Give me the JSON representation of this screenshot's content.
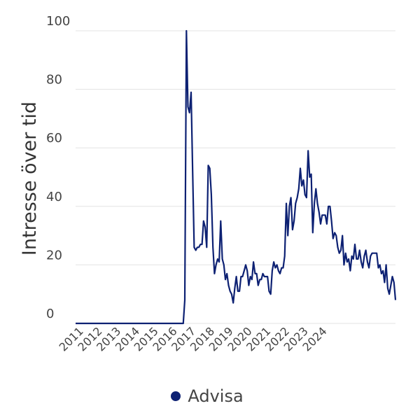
{
  "chart_data": {
    "type": "line",
    "title": "",
    "xlabel": "",
    "ylabel": "Intresse över tid",
    "ylim": [
      0,
      100
    ],
    "yticks": [
      0,
      20,
      40,
      60,
      80,
      100
    ],
    "xticks": [
      "2011",
      "2012",
      "2013",
      "2014",
      "2015",
      "2016",
      "2017",
      "2018",
      "2019",
      "2020",
      "2021",
      "2022",
      "2023",
      "2024"
    ],
    "grid": true,
    "legend_position": "bottom",
    "series": [
      {
        "name": "Advisa",
        "color": "#0d2173",
        "x_start": "2011-01",
        "frequency": "monthly",
        "values": [
          0,
          0,
          0,
          0,
          0,
          0,
          0,
          0,
          0,
          0,
          0,
          0,
          0,
          0,
          0,
          0,
          0,
          0,
          0,
          0,
          0,
          0,
          0,
          0,
          0,
          0,
          0,
          0,
          0,
          0,
          0,
          0,
          0,
          0,
          0,
          0,
          0,
          0,
          0,
          0,
          0,
          0,
          0,
          0,
          0,
          0,
          0,
          0,
          0,
          0,
          0,
          0,
          0,
          0,
          0,
          0,
          0,
          0,
          0,
          0,
          0,
          0,
          0,
          0,
          0,
          0,
          0,
          0,
          0,
          0,
          8,
          100,
          74,
          72,
          79,
          52,
          26,
          25,
          26,
          26,
          27,
          27,
          35,
          33,
          26,
          54,
          53,
          44,
          26,
          17,
          20,
          22,
          21,
          35,
          22,
          20,
          15,
          17,
          13,
          11,
          10,
          7,
          12,
          16,
          11,
          11,
          16,
          16,
          18,
          20,
          18,
          13,
          16,
          15,
          21,
          17,
          17,
          13,
          15,
          15,
          17,
          16,
          16,
          16,
          11,
          10,
          18,
          21,
          19,
          20,
          18,
          17,
          19,
          19,
          23,
          41,
          30,
          40,
          43,
          32,
          35,
          41,
          43,
          46,
          53,
          47,
          49,
          44,
          43,
          59,
          50,
          51,
          31,
          41,
          46,
          41,
          38,
          34,
          37,
          37,
          37,
          34,
          40,
          40,
          35,
          29,
          31,
          30,
          26,
          24,
          25,
          30,
          20,
          24,
          21,
          22,
          18,
          23,
          22,
          27,
          22,
          22,
          25,
          21,
          19,
          23,
          25,
          21,
          19,
          23,
          24,
          24,
          24,
          24,
          19,
          20,
          17,
          18,
          14,
          20,
          12,
          10,
          13,
          16,
          14,
          8
        ]
      }
    ]
  },
  "legend": {
    "items": [
      {
        "label": "Advisa",
        "color": "#0d2173"
      }
    ]
  }
}
